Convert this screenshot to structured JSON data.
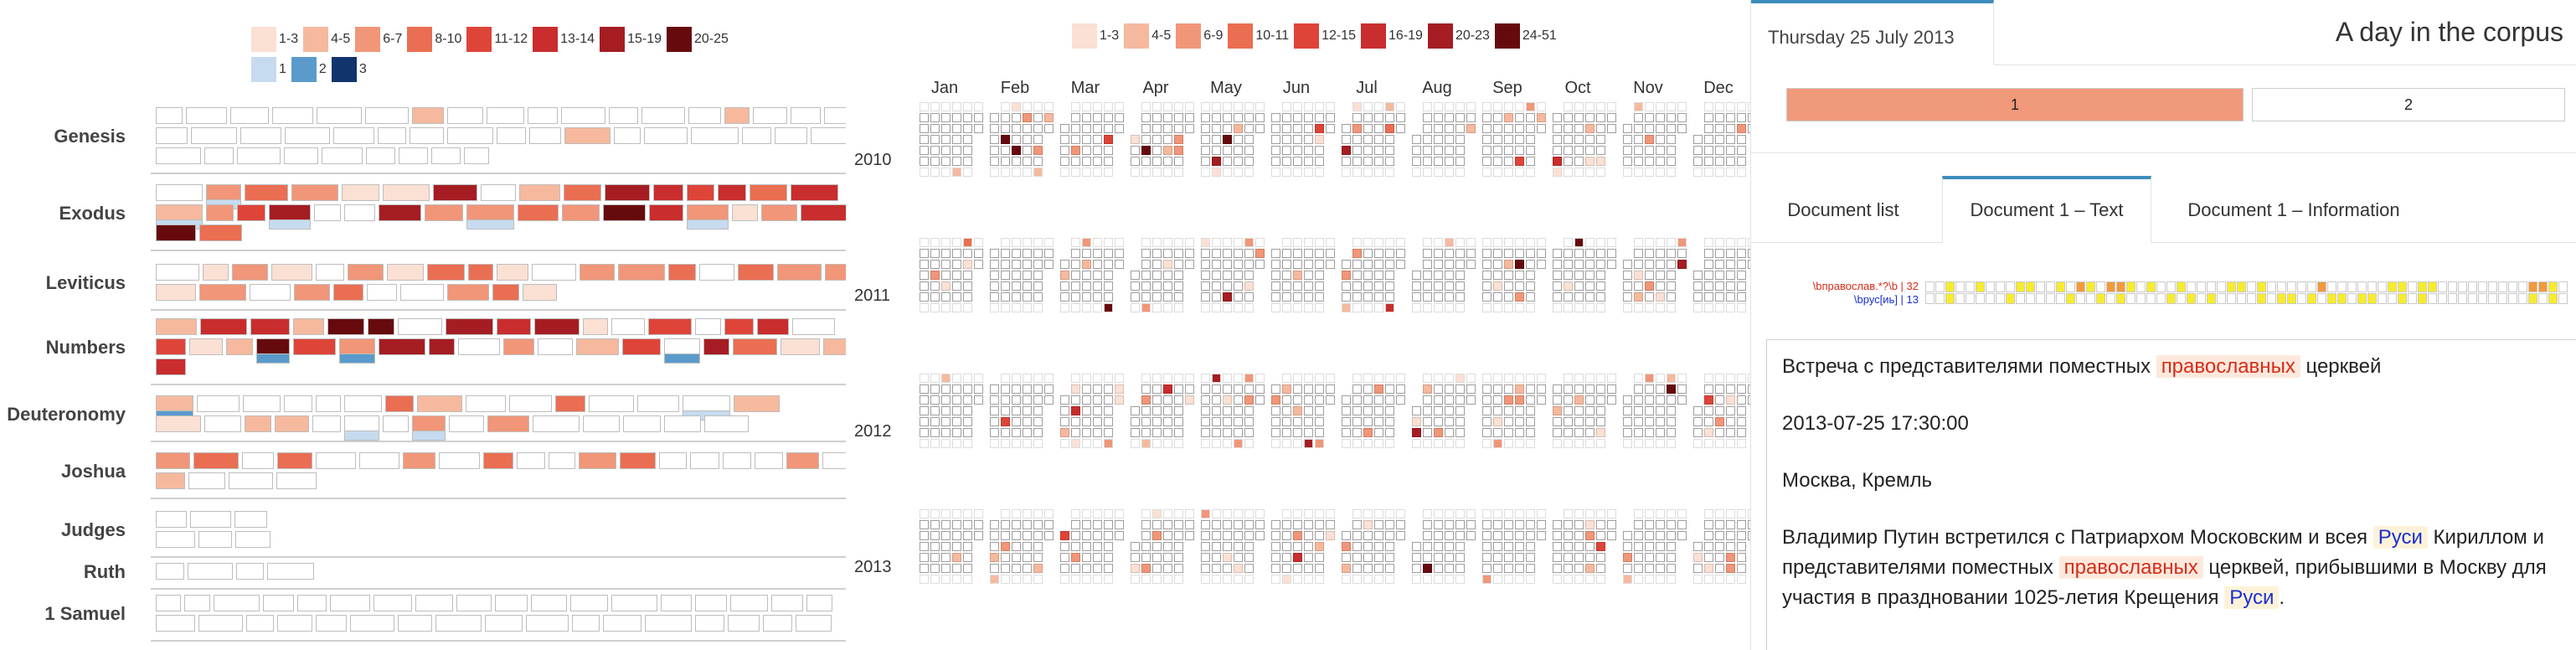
{
  "left_panel": {
    "legend_red": [
      {
        "label": "1-3",
        "color": "#fbe0d4"
      },
      {
        "label": "4-5",
        "color": "#f6b99e"
      },
      {
        "label": "6-7",
        "color": "#f19678"
      },
      {
        "label": "8-10",
        "color": "#ea6e52"
      },
      {
        "label": "11-12",
        "color": "#de4438"
      },
      {
        "label": "13-14",
        "color": "#c92d2d"
      },
      {
        "label": "15-19",
        "color": "#a51d23"
      },
      {
        "label": "20-25",
        "color": "#670a0e"
      }
    ],
    "legend_blue": [
      {
        "label": "1",
        "color": "#c6dbef"
      },
      {
        "label": "2",
        "color": "#5a9bcc"
      },
      {
        "label": "3",
        "color": "#12346e"
      }
    ],
    "books": [
      {
        "name": "Genesis"
      },
      {
        "name": "Exodus"
      },
      {
        "name": "Leviticus"
      },
      {
        "name": "Numbers"
      },
      {
        "name": "Deuteronomy"
      },
      {
        "name": "Joshua"
      },
      {
        "name": "Judges"
      },
      {
        "name": "Ruth"
      },
      {
        "name": "1 Samuel"
      }
    ]
  },
  "calendar": {
    "legend": [
      {
        "label": "1-3",
        "color": "#fbe0d4"
      },
      {
        "label": "4-5",
        "color": "#f6b99e"
      },
      {
        "label": "6-9",
        "color": "#f19678"
      },
      {
        "label": "10-11",
        "color": "#ea6e52"
      },
      {
        "label": "12-15",
        "color": "#de4438"
      },
      {
        "label": "16-19",
        "color": "#c92d2d"
      },
      {
        "label": "20-23",
        "color": "#a51d23"
      },
      {
        "label": "24-51",
        "color": "#670a0e"
      }
    ],
    "months": [
      "Jan",
      "Feb",
      "Mar",
      "Apr",
      "May",
      "Jun",
      "Jul",
      "Aug",
      "Sep",
      "Oct",
      "Nov",
      "Dec"
    ],
    "years": [
      "2010",
      "2011",
      "2012",
      "2013"
    ]
  },
  "right_panel": {
    "date_tab": "Thursday 25 July 2013",
    "corpus_title": "A day in the corpus",
    "documents": [
      {
        "label": "1",
        "color": "#f0997b"
      },
      {
        "label": "2",
        "color": "#ffffff"
      }
    ],
    "tabs": [
      "Document list",
      "Document 1 – Text",
      "Document 1 – Information"
    ],
    "active_tab": 1,
    "patterns": [
      {
        "label": "\\bправослав.*?\\b | 32",
        "color": "#d62c1a"
      },
      {
        "label": "\\bрус[иь] | 13",
        "color": "#1a2fd0"
      }
    ],
    "doc_text": {
      "title_before": "Встреча с представителями поместных ",
      "title_hl": "православных",
      "title_after": " церквей",
      "datetime": "2013-07-25 17:30:00",
      "place": "Москва, Кремль",
      "p1": "Владимир Путин встретился с Патриархом Московским и всея ",
      "p1_hl": "Руси",
      "p2": " Кириллом и представителями поместных ",
      "p2_hl": "православных",
      "p3": " церквей, прибывшими в Москву для участия в праздновании 1025-летия Крещения ",
      "p3_hl": "Руси",
      "p3_end": "."
    }
  }
}
